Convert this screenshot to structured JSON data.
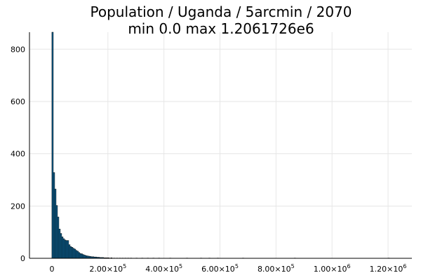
{
  "chart_data": {
    "type": "bar",
    "title": "Population / Uganda / 5arcmin / 2070",
    "subtitle": "min 0.0  max 1.2061726e6",
    "xlabel": "",
    "ylabel": "",
    "xlim": [
      -80000,
      1285000
    ],
    "ylim": [
      0,
      865
    ],
    "grid": true,
    "legend": "none",
    "bar_color": "#0d5f8f",
    "bin_width": 5000,
    "x_ticks": [
      0,
      200000,
      400000,
      600000,
      800000,
      1000000,
      1200000
    ],
    "x_tick_labels": [
      {
        "base": "0",
        "exp": ""
      },
      {
        "base": "2.00×10",
        "exp": "5"
      },
      {
        "base": "4.00×10",
        "exp": "5"
      },
      {
        "base": "6.00×10",
        "exp": "5"
      },
      {
        "base": "8.00×10",
        "exp": "5"
      },
      {
        "base": "1.00×10",
        "exp": "6"
      },
      {
        "base": "1.20×10",
        "exp": "6"
      }
    ],
    "y_ticks": [
      0,
      200,
      400,
      600,
      800
    ],
    "y_tick_labels": [
      "0",
      "200",
      "400",
      "600",
      "800"
    ],
    "bin_starts": [
      0,
      5000,
      10000,
      15000,
      20000,
      25000,
      30000,
      35000,
      40000,
      45000,
      50000,
      55000,
      60000,
      65000,
      70000,
      75000,
      80000,
      85000,
      90000,
      95000,
      100000,
      105000,
      110000,
      115000,
      120000,
      125000,
      130000,
      135000,
      140000,
      145000,
      150000,
      155000,
      160000,
      165000,
      170000,
      175000,
      180000,
      185000,
      190000,
      195000,
      200000,
      210000,
      220000,
      230000,
      240000,
      250000,
      260000,
      270000,
      280000,
      300000,
      320000,
      340000,
      360000,
      380000,
      420000,
      480000,
      530000,
      560000,
      590000,
      680000,
      865000,
      1200000
    ],
    "values": [
      865,
      328,
      265,
      202,
      158,
      112,
      95,
      82,
      75,
      70,
      68,
      68,
      52,
      45,
      42,
      38,
      35,
      30,
      27,
      22,
      18,
      17,
      14,
      12,
      10,
      9,
      8,
      7,
      6,
      6,
      5,
      5,
      4,
      4,
      3,
      3,
      3,
      2,
      2,
      2,
      2,
      2,
      1,
      1,
      1,
      1,
      1,
      1,
      1,
      1,
      1,
      1,
      1,
      1,
      1,
      1,
      1,
      1,
      1,
      1,
      1,
      1
    ]
  }
}
